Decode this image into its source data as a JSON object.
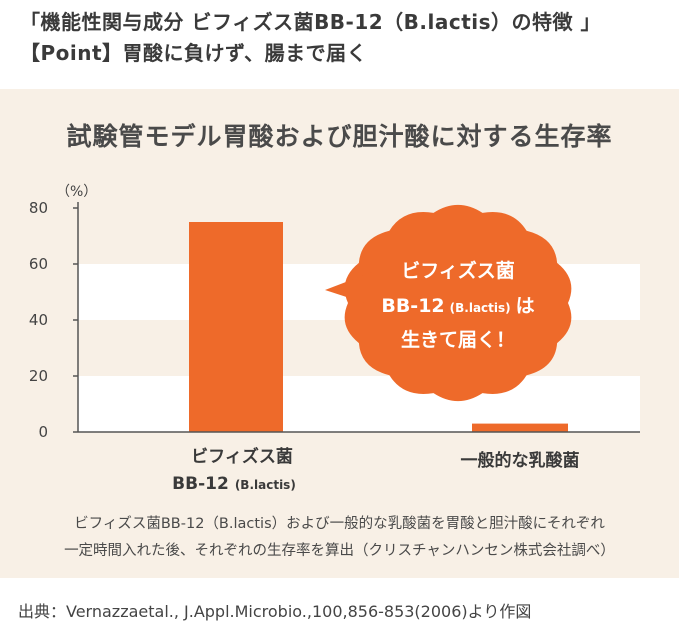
{
  "header": {
    "line1": "「機能性関与成分 ビフィズス菌BB-12（B.lactis）の特徴 」",
    "line2": "【Point】胃酸に負けず、腸まで届く"
  },
  "chart_data": {
    "type": "bar",
    "title": "試験管モデル胃酸および胆汁酸に対する生存率",
    "unit": "（%）",
    "categories": [
      {
        "line1": "ビフィズス菌",
        "line2_main": "BB-12",
        "line2_sub": "(B.lactis)"
      },
      {
        "line1": "一般的な乳酸菌"
      }
    ],
    "values": [
      75,
      3
    ],
    "ylim": [
      0,
      80
    ],
    "yticks": [
      0,
      20,
      40,
      60,
      80
    ],
    "bar_color": "#ee6a2a",
    "callout": {
      "line1": "ビフィズス菌",
      "line2_main": "BB-12",
      "line2_sub": "(B.lactis)",
      "line2_tail": "は",
      "line3": "生きて届く！",
      "color": "#ee6a2a"
    }
  },
  "caption": {
    "line1": "ビフィズス菌BB-12（B.lactis）および一般的な乳酸菌を胃酸と胆汁酸にそれぞれ",
    "line2": "一定時間入れた後、それぞれの生存率を算出（クリスチャンハンセン株式会社調べ）"
  },
  "source": "出典：Vernazzaetal., J.Appl.Microbio.,100,856-853(2006)より作図"
}
